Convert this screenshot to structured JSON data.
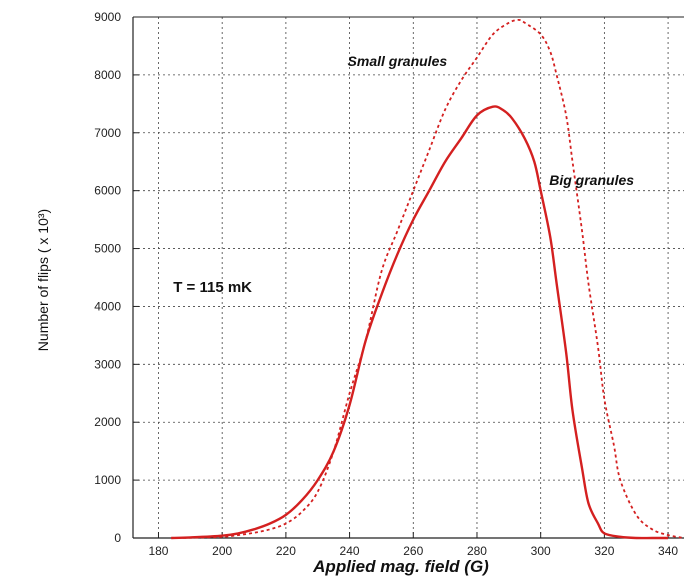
{
  "chart_data": {
    "type": "line",
    "title": "",
    "xlabel": "Applied mag. field (G)",
    "ylabel": "Number of flips ( x 10³)",
    "xlim": [
      172,
      345
    ],
    "ylim": [
      0,
      9000
    ],
    "x_ticks": [
      180,
      200,
      220,
      240,
      260,
      280,
      300,
      320,
      340
    ],
    "y_ticks": [
      0,
      1000,
      2000,
      3000,
      4000,
      5000,
      6000,
      7000,
      8000,
      9000
    ],
    "grid": true,
    "series": [
      {
        "name": "Big granules",
        "style": "solid",
        "color": "#d42020",
        "x": [
          184,
          190,
          200,
          205,
          210,
          215,
          220,
          225,
          230,
          235,
          240,
          245,
          250,
          255,
          260,
          265,
          270,
          275,
          280,
          285,
          288,
          291,
          295,
          298,
          300,
          303,
          305,
          308,
          310,
          313,
          315,
          318,
          320,
          325,
          330,
          335,
          340
        ],
        "y": [
          0,
          10,
          40,
          80,
          150,
          250,
          400,
          650,
          1000,
          1500,
          2300,
          3400,
          4200,
          4900,
          5500,
          6000,
          6500,
          6900,
          7300,
          7450,
          7400,
          7250,
          6900,
          6500,
          6000,
          5200,
          4400,
          3200,
          2200,
          1200,
          600,
          250,
          80,
          20,
          0,
          0,
          0
        ]
      },
      {
        "name": "Small granules",
        "style": "dashed",
        "color": "#d42020",
        "x": [
          184,
          190,
          200,
          205,
          210,
          215,
          220,
          225,
          230,
          235,
          240,
          245,
          250,
          255,
          260,
          265,
          270,
          275,
          280,
          285,
          290,
          293,
          295,
          300,
          303,
          305,
          308,
          310,
          313,
          315,
          318,
          320,
          323,
          325,
          330,
          335,
          340,
          345
        ],
        "y": [
          0,
          5,
          20,
          50,
          90,
          150,
          250,
          450,
          800,
          1500,
          2500,
          3400,
          4600,
          5300,
          6000,
          6700,
          7400,
          7900,
          8300,
          8700,
          8900,
          8950,
          8900,
          8700,
          8400,
          8000,
          7300,
          6500,
          5300,
          4400,
          3300,
          2400,
          1600,
          1000,
          400,
          150,
          50,
          0
        ]
      }
    ],
    "annotations": [
      {
        "text": "Small granules",
        "x": 255,
        "y": 8150
      },
      {
        "text": "Big granules",
        "x": 316,
        "y": 6100
      },
      {
        "text": "T = 115 mK",
        "x": 197,
        "y": 4250
      }
    ]
  }
}
